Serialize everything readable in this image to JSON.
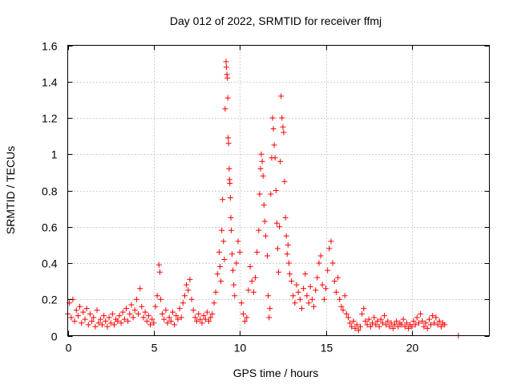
{
  "chart_data": {
    "type": "scatter",
    "title": "Day 012 of 2022, SRMTID for receiver ffmj",
    "xlabel": "GPS time / hours",
    "ylabel": "SRMTID / TECUs",
    "xlim": [
      0,
      24.5
    ],
    "ylim": [
      0,
      1.6
    ],
    "x_ticks": [
      0,
      5,
      10,
      15,
      20
    ],
    "x_tick_labels": [
      "0",
      "5",
      "10",
      "15",
      "20"
    ],
    "y_ticks": [
      0,
      0.2,
      0.4,
      0.6,
      0.8,
      1.0,
      1.2,
      1.4,
      1.6
    ],
    "y_tick_labels": [
      "0",
      "0.2",
      "0.4",
      "0.6",
      "0.8",
      "1",
      "1.2",
      "1.4",
      "1.6"
    ],
    "grid": true,
    "marker": "+",
    "color": "#ff0000",
    "series": [
      {
        "name": "SRMTID",
        "points": [
          [
            0.0,
            0.12
          ],
          [
            0.1,
            0.18
          ],
          [
            0.2,
            0.1
          ],
          [
            0.3,
            0.2
          ],
          [
            0.4,
            0.08
          ],
          [
            0.5,
            0.14
          ],
          [
            0.6,
            0.11
          ],
          [
            0.7,
            0.16
          ],
          [
            0.8,
            0.07
          ],
          [
            0.9,
            0.13
          ],
          [
            1.0,
            0.09
          ],
          [
            1.1,
            0.15
          ],
          [
            1.2,
            0.06
          ],
          [
            1.3,
            0.12
          ],
          [
            1.4,
            0.08
          ],
          [
            1.5,
            0.1
          ],
          [
            1.6,
            0.05
          ],
          [
            1.7,
            0.14
          ],
          [
            1.8,
            0.07
          ],
          [
            1.9,
            0.09
          ],
          [
            2.0,
            0.06
          ],
          [
            2.1,
            0.11
          ],
          [
            2.2,
            0.08
          ],
          [
            2.3,
            0.05
          ],
          [
            2.4,
            0.1
          ],
          [
            2.5,
            0.07
          ],
          [
            2.6,
            0.12
          ],
          [
            2.7,
            0.06
          ],
          [
            2.8,
            0.09
          ],
          [
            2.9,
            0.08
          ],
          [
            3.0,
            0.11
          ],
          [
            3.1,
            0.07
          ],
          [
            3.2,
            0.13
          ],
          [
            3.3,
            0.09
          ],
          [
            3.4,
            0.15
          ],
          [
            3.5,
            0.08
          ],
          [
            3.6,
            0.12
          ],
          [
            3.7,
            0.17
          ],
          [
            3.8,
            0.1
          ],
          [
            3.9,
            0.14
          ],
          [
            4.0,
            0.2
          ],
          [
            4.1,
            0.12
          ],
          [
            4.2,
            0.26
          ],
          [
            4.3,
            0.16
          ],
          [
            4.4,
            0.1
          ],
          [
            4.5,
            0.13
          ],
          [
            4.6,
            0.08
          ],
          [
            4.7,
            0.11
          ],
          [
            4.8,
            0.06
          ],
          [
            4.9,
            0.09
          ],
          [
            5.0,
            0.07
          ],
          [
            5.1,
            0.16
          ],
          [
            5.2,
            0.22
          ],
          [
            5.3,
            0.39
          ],
          [
            5.35,
            0.35
          ],
          [
            5.4,
            0.2
          ],
          [
            5.5,
            0.12
          ],
          [
            5.6,
            0.09
          ],
          [
            5.7,
            0.14
          ],
          [
            5.8,
            0.07
          ],
          [
            5.9,
            0.1
          ],
          [
            6.0,
            0.08
          ],
          [
            6.1,
            0.13
          ],
          [
            6.2,
            0.06
          ],
          [
            6.3,
            0.11
          ],
          [
            6.4,
            0.09
          ],
          [
            6.5,
            0.15
          ],
          [
            6.6,
            0.1
          ],
          [
            6.7,
            0.18
          ],
          [
            6.8,
            0.22
          ],
          [
            6.9,
            0.28
          ],
          [
            7.0,
            0.25
          ],
          [
            7.1,
            0.31
          ],
          [
            7.2,
            0.2
          ],
          [
            7.3,
            0.14
          ],
          [
            7.4,
            0.1
          ],
          [
            7.5,
            0.08
          ],
          [
            7.6,
            0.12
          ],
          [
            7.7,
            0.09
          ],
          [
            7.8,
            0.07
          ],
          [
            7.9,
            0.11
          ],
          [
            8.0,
            0.09
          ],
          [
            8.1,
            0.13
          ],
          [
            8.2,
            0.08
          ],
          [
            8.3,
            0.1
          ],
          [
            8.4,
            0.12
          ],
          [
            8.5,
            0.18
          ],
          [
            8.6,
            0.24
          ],
          [
            8.7,
            0.34
          ],
          [
            8.8,
            0.46
          ],
          [
            8.85,
            0.38
          ],
          [
            8.9,
            0.3
          ],
          [
            8.95,
            0.58
          ],
          [
            9.0,
            0.75
          ],
          [
            9.05,
            0.52
          ],
          [
            9.1,
            0.42
          ],
          [
            9.15,
            1.25
          ],
          [
            9.2,
            1.51
          ],
          [
            9.22,
            1.48
          ],
          [
            9.25,
            1.44
          ],
          [
            9.28,
            1.42
          ],
          [
            9.3,
            1.31
          ],
          [
            9.32,
            1.09
          ],
          [
            9.35,
            1.06
          ],
          [
            9.38,
            0.92
          ],
          [
            9.4,
            0.86
          ],
          [
            9.42,
            0.84
          ],
          [
            9.45,
            0.76
          ],
          [
            9.48,
            0.65
          ],
          [
            9.5,
            0.58
          ],
          [
            9.55,
            0.45
          ],
          [
            9.6,
            0.36
          ],
          [
            9.65,
            0.28
          ],
          [
            9.7,
            0.22
          ],
          [
            9.8,
            0.4
          ],
          [
            9.9,
            0.52
          ],
          [
            10.0,
            0.46
          ],
          [
            10.1,
            0.18
          ],
          [
            10.2,
            0.12
          ],
          [
            10.3,
            0.08
          ],
          [
            10.4,
            0.1
          ],
          [
            10.5,
            0.25
          ],
          [
            10.6,
            0.38
          ],
          [
            10.7,
            0.3
          ],
          [
            10.8,
            0.24
          ],
          [
            10.9,
            0.32
          ],
          [
            11.0,
            0.46
          ],
          [
            11.1,
            0.58
          ],
          [
            11.15,
            0.78
          ],
          [
            11.2,
            0.92
          ],
          [
            11.25,
            1.0
          ],
          [
            11.3,
            0.96
          ],
          [
            11.35,
            0.88
          ],
          [
            11.4,
            0.72
          ],
          [
            11.45,
            0.63
          ],
          [
            11.5,
            0.55
          ],
          [
            11.6,
            0.44
          ],
          [
            11.65,
            0.22
          ],
          [
            11.7,
            0.1
          ],
          [
            11.75,
            0.15
          ],
          [
            11.8,
            0.78
          ],
          [
            11.85,
            0.98
          ],
          [
            11.9,
            1.2
          ],
          [
            11.95,
            1.14
          ],
          [
            12.0,
            1.05
          ],
          [
            12.05,
            0.98
          ],
          [
            12.1,
            0.8
          ],
          [
            12.15,
            0.62
          ],
          [
            12.2,
            0.48
          ],
          [
            12.25,
            0.35
          ],
          [
            12.3,
            0.6
          ],
          [
            12.35,
            0.96
          ],
          [
            12.4,
            1.32
          ],
          [
            12.45,
            1.2
          ],
          [
            12.5,
            1.15
          ],
          [
            12.55,
            1.12
          ],
          [
            12.6,
            0.85
          ],
          [
            12.65,
            0.65
          ],
          [
            12.7,
            0.55
          ],
          [
            12.75,
            0.45
          ],
          [
            12.8,
            0.5
          ],
          [
            12.85,
            0.4
          ],
          [
            12.9,
            0.34
          ],
          [
            13.0,
            0.3
          ],
          [
            13.1,
            0.22
          ],
          [
            13.2,
            0.18
          ],
          [
            13.3,
            0.28
          ],
          [
            13.4,
            0.24
          ],
          [
            13.5,
            0.2
          ],
          [
            13.6,
            0.15
          ],
          [
            13.7,
            0.26
          ],
          [
            13.8,
            0.34
          ],
          [
            13.9,
            0.22
          ],
          [
            14.0,
            0.18
          ],
          [
            14.1,
            0.27
          ],
          [
            14.2,
            0.2
          ],
          [
            14.3,
            0.16
          ],
          [
            14.4,
            0.25
          ],
          [
            14.5,
            0.32
          ],
          [
            14.6,
            0.4
          ],
          [
            14.7,
            0.44
          ],
          [
            14.8,
            0.28
          ],
          [
            14.9,
            0.2
          ],
          [
            15.0,
            0.26
          ],
          [
            15.1,
            0.36
          ],
          [
            15.2,
            0.48
          ],
          [
            15.3,
            0.52
          ],
          [
            15.4,
            0.4
          ],
          [
            15.5,
            0.3
          ],
          [
            15.6,
            0.24
          ],
          [
            15.7,
            0.32
          ],
          [
            15.8,
            0.2
          ],
          [
            15.9,
            0.16
          ],
          [
            16.0,
            0.14
          ],
          [
            16.1,
            0.22
          ],
          [
            16.2,
            0.12
          ],
          [
            16.3,
            0.1
          ],
          [
            16.4,
            0.07
          ],
          [
            16.5,
            0.05
          ],
          [
            16.6,
            0.08
          ],
          [
            16.7,
            0.04
          ],
          [
            16.8,
            0.06
          ],
          [
            16.9,
            0.03
          ],
          [
            17.0,
            0.05
          ],
          [
            17.1,
            0.12
          ],
          [
            17.2,
            0.15
          ],
          [
            17.3,
            0.08
          ],
          [
            17.4,
            0.06
          ],
          [
            17.5,
            0.09
          ],
          [
            17.6,
            0.05
          ],
          [
            17.7,
            0.07
          ],
          [
            17.8,
            0.1
          ],
          [
            17.9,
            0.06
          ],
          [
            18.0,
            0.08
          ],
          [
            18.1,
            0.05
          ],
          [
            18.2,
            0.09
          ],
          [
            18.3,
            0.07
          ],
          [
            18.4,
            0.11
          ],
          [
            18.5,
            0.06
          ],
          [
            18.6,
            0.08
          ],
          [
            18.7,
            0.05
          ],
          [
            18.8,
            0.07
          ],
          [
            18.9,
            0.04
          ],
          [
            19.0,
            0.06
          ],
          [
            19.1,
            0.08
          ],
          [
            19.2,
            0.05
          ],
          [
            19.3,
            0.07
          ],
          [
            19.4,
            0.06
          ],
          [
            19.5,
            0.09
          ],
          [
            19.6,
            0.05
          ],
          [
            19.7,
            0.07
          ],
          [
            19.8,
            0.04
          ],
          [
            19.9,
            0.06
          ],
          [
            20.0,
            0.05
          ],
          [
            20.1,
            0.08
          ],
          [
            20.2,
            0.06
          ],
          [
            20.3,
            0.1
          ],
          [
            20.4,
            0.07
          ],
          [
            20.5,
            0.12
          ],
          [
            20.6,
            0.08
          ],
          [
            20.7,
            0.05
          ],
          [
            20.8,
            0.07
          ],
          [
            20.9,
            0.04
          ],
          [
            21.0,
            0.09
          ],
          [
            21.1,
            0.06
          ],
          [
            21.2,
            0.11
          ],
          [
            21.3,
            0.07
          ],
          [
            21.4,
            0.1
          ],
          [
            21.5,
            0.06
          ],
          [
            21.6,
            0.08
          ],
          [
            21.7,
            0.05
          ],
          [
            21.8,
            0.07
          ],
          [
            21.9,
            0.06
          ],
          [
            22.7,
            0.0
          ]
        ]
      }
    ]
  }
}
